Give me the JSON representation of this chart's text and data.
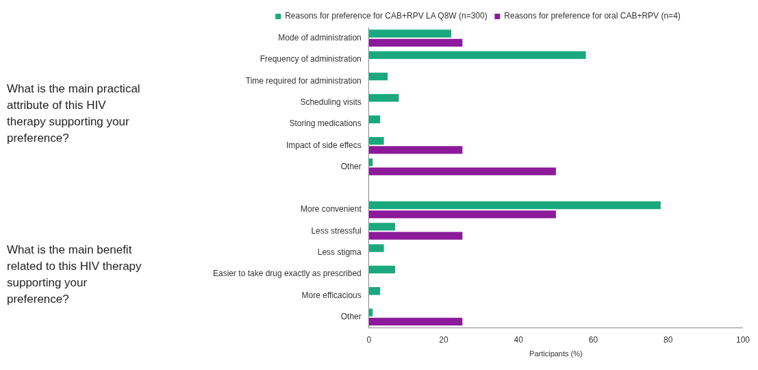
{
  "chart_data": {
    "type": "bar",
    "orientation": "horizontal",
    "xlabel": "Participants (%)",
    "categories": [
      "Mode of administration",
      "Frequency of administration",
      "Time required for administration",
      "Scheduling visits",
      "Storing medications",
      "Impact of side effecs",
      "Other",
      null,
      "More convenient",
      "Less stressful",
      "Less stigma",
      "Easier to take drug exactly as prescribed",
      "More efficacious",
      "Other"
    ],
    "series": [
      {
        "name": "Reasons for preference for CAB+RPV LA Q8W (n=300)",
        "color": "#1aa97e",
        "values": [
          22,
          58,
          5,
          8,
          3,
          4,
          1,
          null,
          78,
          7,
          4,
          7,
          3,
          1
        ]
      },
      {
        "name": "Reasons for preference for oral CAB+RPV (n=4)",
        "color": "#8c1a9a",
        "values": [
          25,
          0,
          0,
          0,
          0,
          25,
          50,
          null,
          50,
          25,
          0,
          0,
          0,
          25
        ]
      }
    ],
    "xlim": [
      0,
      100
    ],
    "xticks": [
      0,
      20,
      40,
      60,
      80,
      100
    ],
    "grid": false,
    "legend": "top",
    "annotations": [
      "What is the main practical attribute of this HIV therapy supporting your preference?",
      "What is the main benefit related to this HIV therapy supporting your preference?"
    ]
  }
}
